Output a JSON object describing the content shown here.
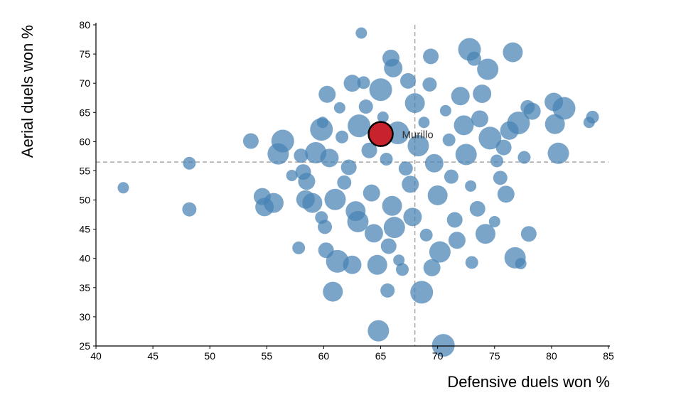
{
  "chart_data": {
    "type": "scatter",
    "title": "",
    "xlabel": "Defensive duels won %",
    "ylabel": "Aerial duels won %",
    "xlim": [
      40,
      85
    ],
    "ylim": [
      25,
      80
    ],
    "x_ticks": [
      40,
      45,
      50,
      55,
      60,
      65,
      70,
      75,
      80,
      85
    ],
    "y_ticks": [
      25,
      30,
      35,
      40,
      45,
      50,
      55,
      60,
      65,
      70,
      75,
      80
    ],
    "reference_lines": {
      "x": 68.0,
      "y": 56.5
    },
    "grid": false,
    "colors": {
      "points": "#4682b4",
      "highlight": "#c8222d",
      "reference": "#a8a8a8",
      "axis": "#000000"
    },
    "highlight": {
      "label": "Murillo",
      "x": 65.0,
      "y": 61.3
    },
    "points": [
      [
        42.4,
        52.1
      ],
      [
        48.2,
        56.3
      ],
      [
        48.2,
        48.4
      ],
      [
        53.6,
        60.1
      ],
      [
        54.6,
        50.6
      ],
      [
        54.8,
        48.8
      ],
      [
        55.6,
        49.5
      ],
      [
        56.0,
        57.9
      ],
      [
        56.4,
        60.1
      ],
      [
        57.2,
        54.2
      ],
      [
        57.8,
        41.8
      ],
      [
        58.0,
        57.6
      ],
      [
        58.2,
        54.8
      ],
      [
        58.5,
        53.2
      ],
      [
        58.4,
        50.1
      ],
      [
        59.0,
        49.5
      ],
      [
        59.3,
        58.1
      ],
      [
        59.8,
        62.1
      ],
      [
        59.9,
        63.3
      ],
      [
        59.8,
        47.0
      ],
      [
        60.1,
        45.4
      ],
      [
        60.2,
        41.4
      ],
      [
        60.3,
        68.1
      ],
      [
        60.5,
        57.2
      ],
      [
        60.8,
        34.3
      ],
      [
        61.0,
        50.1
      ],
      [
        61.2,
        39.5
      ],
      [
        61.4,
        65.8
      ],
      [
        61.6,
        60.8
      ],
      [
        61.8,
        53.0
      ],
      [
        62.2,
        55.6
      ],
      [
        62.5,
        70.0
      ],
      [
        62.5,
        38.9
      ],
      [
        62.8,
        48.1
      ],
      [
        63.0,
        46.3
      ],
      [
        63.1,
        62.7
      ],
      [
        63.3,
        78.6
      ],
      [
        63.5,
        70.1
      ],
      [
        63.7,
        66.0
      ],
      [
        64.0,
        58.5
      ],
      [
        64.2,
        51.2
      ],
      [
        64.4,
        44.3
      ],
      [
        64.7,
        38.9
      ],
      [
        64.8,
        27.6
      ],
      [
        65.0,
        68.9
      ],
      [
        65.2,
        64.2
      ],
      [
        65.5,
        57.0
      ],
      [
        65.6,
        34.5
      ],
      [
        65.7,
        42.1
      ],
      [
        65.9,
        74.3
      ],
      [
        66.1,
        72.6
      ],
      [
        66.0,
        49.0
      ],
      [
        66.2,
        45.3
      ],
      [
        66.5,
        61.5
      ],
      [
        66.6,
        39.7
      ],
      [
        66.9,
        38.1
      ],
      [
        67.2,
        55.4
      ],
      [
        67.4,
        70.4
      ],
      [
        67.6,
        52.7
      ],
      [
        67.8,
        47.1
      ],
      [
        68.0,
        66.6
      ],
      [
        68.3,
        59.3
      ],
      [
        68.6,
        34.2
      ],
      [
        68.8,
        63.3
      ],
      [
        69.0,
        44.0
      ],
      [
        69.3,
        69.8
      ],
      [
        69.4,
        74.6
      ],
      [
        69.5,
        38.4
      ],
      [
        69.7,
        56.3
      ],
      [
        70.0,
        50.8
      ],
      [
        70.2,
        41.1
      ],
      [
        70.5,
        25.1
      ],
      [
        70.7,
        65.3
      ],
      [
        71.0,
        60.3
      ],
      [
        71.2,
        54.0
      ],
      [
        71.5,
        46.6
      ],
      [
        71.7,
        43.1
      ],
      [
        72.0,
        67.8
      ],
      [
        72.3,
        62.8
      ],
      [
        72.5,
        57.8
      ],
      [
        72.8,
        75.8
      ],
      [
        72.9,
        52.4
      ],
      [
        73.0,
        39.3
      ],
      [
        73.2,
        74.2
      ],
      [
        73.5,
        48.5
      ],
      [
        73.7,
        63.9
      ],
      [
        73.9,
        68.2
      ],
      [
        74.2,
        44.2
      ],
      [
        74.4,
        72.4
      ],
      [
        74.6,
        60.6
      ],
      [
        75.0,
        46.3
      ],
      [
        75.2,
        56.7
      ],
      [
        75.5,
        53.8
      ],
      [
        75.8,
        59.0
      ],
      [
        76.0,
        51.0
      ],
      [
        76.3,
        61.9
      ],
      [
        76.6,
        75.3
      ],
      [
        76.8,
        40.1
      ],
      [
        77.1,
        63.2
      ],
      [
        77.3,
        39.1
      ],
      [
        77.6,
        57.3
      ],
      [
        77.9,
        65.9
      ],
      [
        78.0,
        44.2
      ],
      [
        78.3,
        65.2
      ],
      [
        80.2,
        66.8
      ],
      [
        80.3,
        63.0
      ],
      [
        80.6,
        58.0
      ],
      [
        81.1,
        65.7
      ],
      [
        83.3,
        63.3
      ],
      [
        83.6,
        64.2
      ]
    ]
  }
}
